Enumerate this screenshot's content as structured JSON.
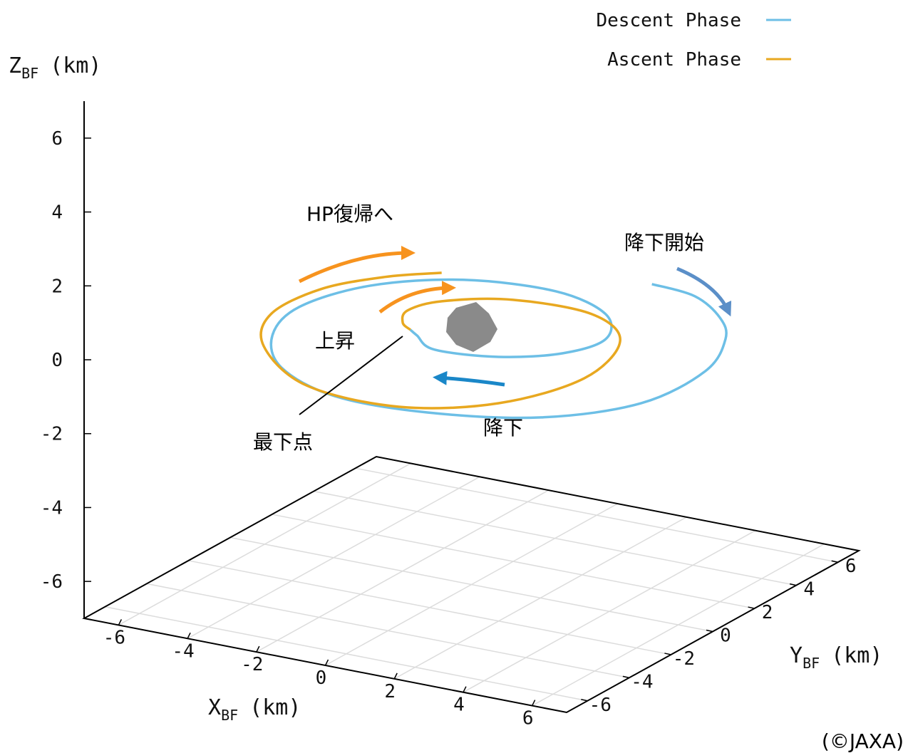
{
  "chart_data": {
    "type": "line3d",
    "x_label": {
      "main": "X",
      "sub": "BF",
      "unit": "(km)"
    },
    "y_label": {
      "main": "Y",
      "sub": "BF",
      "unit": "(km)"
    },
    "z_label": {
      "main": "Z",
      "sub": "BF",
      "unit": "(km)"
    },
    "xlim": [
      -7,
      7
    ],
    "ylim": [
      -7,
      7
    ],
    "zlim": [
      -7,
      7
    ],
    "xticks": [
      -6,
      -4,
      -2,
      0,
      2,
      4,
      6
    ],
    "yticks": [
      -6,
      -4,
      -2,
      0,
      2,
      4,
      6
    ],
    "zticks": [
      -6,
      -4,
      -2,
      0,
      2,
      4,
      6
    ],
    "grid": true,
    "legend": "top-right",
    "series": [
      {
        "name": "Descent Phase",
        "color": "#6dbfe6",
        "x": [
          2.25,
          3.64,
          5.01,
          5.96,
          6.77,
          6.64,
          5.05,
          2.41,
          -0.21,
          -2.46,
          -3.9,
          -4.43,
          -3.73,
          -1.96,
          0.47,
          2.42,
          3.39,
          3.02,
          1.79,
          0.13,
          -0.8,
          -1.16
        ],
        "y": [
          4.93,
          4.69,
          3.63,
          2.33,
          0.03,
          -2.83,
          -4.98,
          -6.09,
          -6.2,
          -5.04,
          -3.1,
          -0.94,
          1.32,
          2.85,
          3.27,
          2.43,
          0.84,
          -0.61,
          -1.64,
          -1.98,
          -1.29,
          -1.01
        ],
        "z": [
          0,
          0,
          0,
          0,
          0,
          0,
          0,
          0,
          0,
          0,
          0,
          0,
          0,
          0,
          0,
          0,
          0,
          0,
          0,
          0,
          0,
          0
        ]
      },
      {
        "name": "Ascent Phase",
        "color": "#e8a820",
        "x": [
          -1.16,
          -1.6,
          -1.97,
          -1.59,
          -0.12,
          2.12,
          3.78,
          4.45,
          3.58,
          1.58,
          -1.23,
          -3.67,
          -4.76,
          -4.66,
          -3.76,
          -2.7
        ],
        "y": [
          -1.01,
          -0.65,
          0.19,
          1.21,
          2.19,
          2.26,
          0.88,
          -1.94,
          -4.61,
          -6.08,
          -5.87,
          -3.89,
          -1.75,
          0.47,
          2.05,
          3.03
        ],
        "z": [
          0,
          0,
          0,
          0,
          0,
          0,
          0,
          0,
          0,
          0,
          0,
          0,
          0,
          0,
          0,
          0
        ]
      }
    ],
    "annotations": [
      "HP復帰へ",
      "降下開始",
      "上昇",
      "最下点",
      "降下"
    ],
    "credit": "(©JAXA)"
  }
}
